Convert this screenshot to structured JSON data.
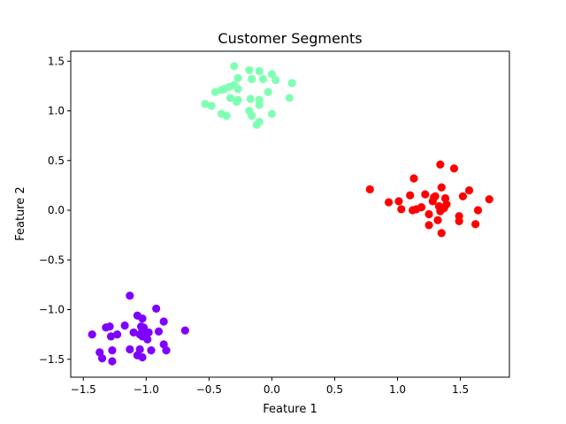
{
  "chart_data": {
    "type": "scatter",
    "title": "Customer Segments",
    "xlabel": "Feature 1",
    "ylabel": "Feature 2",
    "xlim": [
      -1.6,
      1.89
    ],
    "ylim": [
      -1.68,
      1.6
    ],
    "grid": false,
    "x_ticks": [
      -1.5,
      -1.0,
      -0.5,
      0.0,
      0.5,
      1.0,
      1.5
    ],
    "x_tick_labels": [
      "−1.5",
      "−1.0",
      "−0.5",
      "0.0",
      "0.5",
      "1.0",
      "1.5"
    ],
    "y_ticks": [
      -1.5,
      -1.0,
      -0.5,
      0.0,
      0.5,
      1.0,
      1.5
    ],
    "y_tick_labels": [
      "−1.5",
      "−1.0",
      "−0.5",
      "0.0",
      "0.5",
      "1.0",
      "1.5"
    ],
    "series": [
      {
        "color": "#8000ff",
        "points": [
          [
            -1.13,
            -0.86
          ],
          [
            -0.92,
            -0.99
          ],
          [
            -1.07,
            -1.06
          ],
          [
            -1.03,
            -1.09
          ],
          [
            -0.86,
            -1.12
          ],
          [
            -1.17,
            -1.16
          ],
          [
            -1.29,
            -1.17
          ],
          [
            -1.32,
            -1.18
          ],
          [
            -1.04,
            -1.17
          ],
          [
            -0.69,
            -1.21
          ],
          [
            -0.9,
            -1.22
          ],
          [
            -1.03,
            -1.21
          ],
          [
            -1.1,
            -1.23
          ],
          [
            -0.98,
            -1.23
          ],
          [
            -1.23,
            -1.25
          ],
          [
            -1.28,
            -1.27
          ],
          [
            -1.43,
            -1.25
          ],
          [
            -1.03,
            -1.27
          ],
          [
            -0.99,
            -1.3
          ],
          [
            -0.86,
            -1.35
          ],
          [
            -1.13,
            -1.4
          ],
          [
            -1.05,
            -1.4
          ],
          [
            -0.96,
            -1.41
          ],
          [
            -1.07,
            -1.46
          ],
          [
            -1.03,
            -1.48
          ],
          [
            -0.84,
            -1.41
          ],
          [
            -1.37,
            -1.43
          ],
          [
            -1.35,
            -1.49
          ],
          [
            -1.27,
            -1.41
          ],
          [
            -1.27,
            -1.52
          ],
          [
            -1.02,
            -1.18
          ],
          [
            -1.05,
            -1.25
          ]
        ]
      },
      {
        "color": "#80ffb4",
        "points": [
          [
            -0.3,
            1.45
          ],
          [
            -0.18,
            1.41
          ],
          [
            -0.1,
            1.4
          ],
          [
            0.0,
            1.37
          ],
          [
            -0.27,
            1.33
          ],
          [
            -0.16,
            1.32
          ],
          [
            -0.07,
            1.32
          ],
          [
            0.03,
            1.31
          ],
          [
            0.16,
            1.28
          ],
          [
            -0.3,
            1.26
          ],
          [
            -0.34,
            1.24
          ],
          [
            -0.38,
            1.22
          ],
          [
            -0.4,
            1.21
          ],
          [
            -0.45,
            1.19
          ],
          [
            -0.27,
            1.22
          ],
          [
            -0.03,
            1.19
          ],
          [
            -0.33,
            1.13
          ],
          [
            -0.27,
            1.11
          ],
          [
            -0.17,
            1.12
          ],
          [
            -0.1,
            1.11
          ],
          [
            0.14,
            1.13
          ],
          [
            -0.48,
            1.05
          ],
          [
            -0.53,
            1.07
          ],
          [
            -0.1,
            1.06
          ],
          [
            -0.18,
            1.0
          ],
          [
            -0.4,
            0.97
          ],
          [
            -0.36,
            0.95
          ],
          [
            -0.16,
            0.95
          ],
          [
            0.0,
            0.97
          ],
          [
            -0.1,
            0.89
          ],
          [
            -0.12,
            0.86
          ],
          [
            -0.28,
            1.09
          ]
        ]
      },
      {
        "color": "#ff0000",
        "points": [
          [
            1.34,
            0.46
          ],
          [
            1.45,
            0.42
          ],
          [
            1.13,
            0.32
          ],
          [
            1.35,
            0.23
          ],
          [
            1.57,
            0.2
          ],
          [
            0.78,
            0.21
          ],
          [
            1.1,
            0.15
          ],
          [
            1.22,
            0.16
          ],
          [
            1.29,
            0.13
          ],
          [
            1.3,
            0.14
          ],
          [
            1.38,
            0.12
          ],
          [
            1.52,
            0.14
          ],
          [
            1.73,
            0.11
          ],
          [
            0.93,
            0.08
          ],
          [
            1.01,
            0.09
          ],
          [
            1.33,
            0.04
          ],
          [
            1.37,
            0.02
          ],
          [
            1.19,
            0.03
          ],
          [
            1.15,
            0.01
          ],
          [
            1.12,
            0.0
          ],
          [
            1.03,
            0.01
          ],
          [
            1.34,
            -0.01
          ],
          [
            1.64,
            0.0
          ],
          [
            1.25,
            -0.04
          ],
          [
            1.49,
            -0.06
          ],
          [
            1.32,
            -0.1
          ],
          [
            1.49,
            -0.11
          ],
          [
            1.25,
            -0.15
          ],
          [
            1.62,
            -0.14
          ],
          [
            1.35,
            -0.23
          ],
          [
            1.39,
            0.06
          ],
          [
            1.28,
            0.09
          ]
        ]
      }
    ]
  }
}
